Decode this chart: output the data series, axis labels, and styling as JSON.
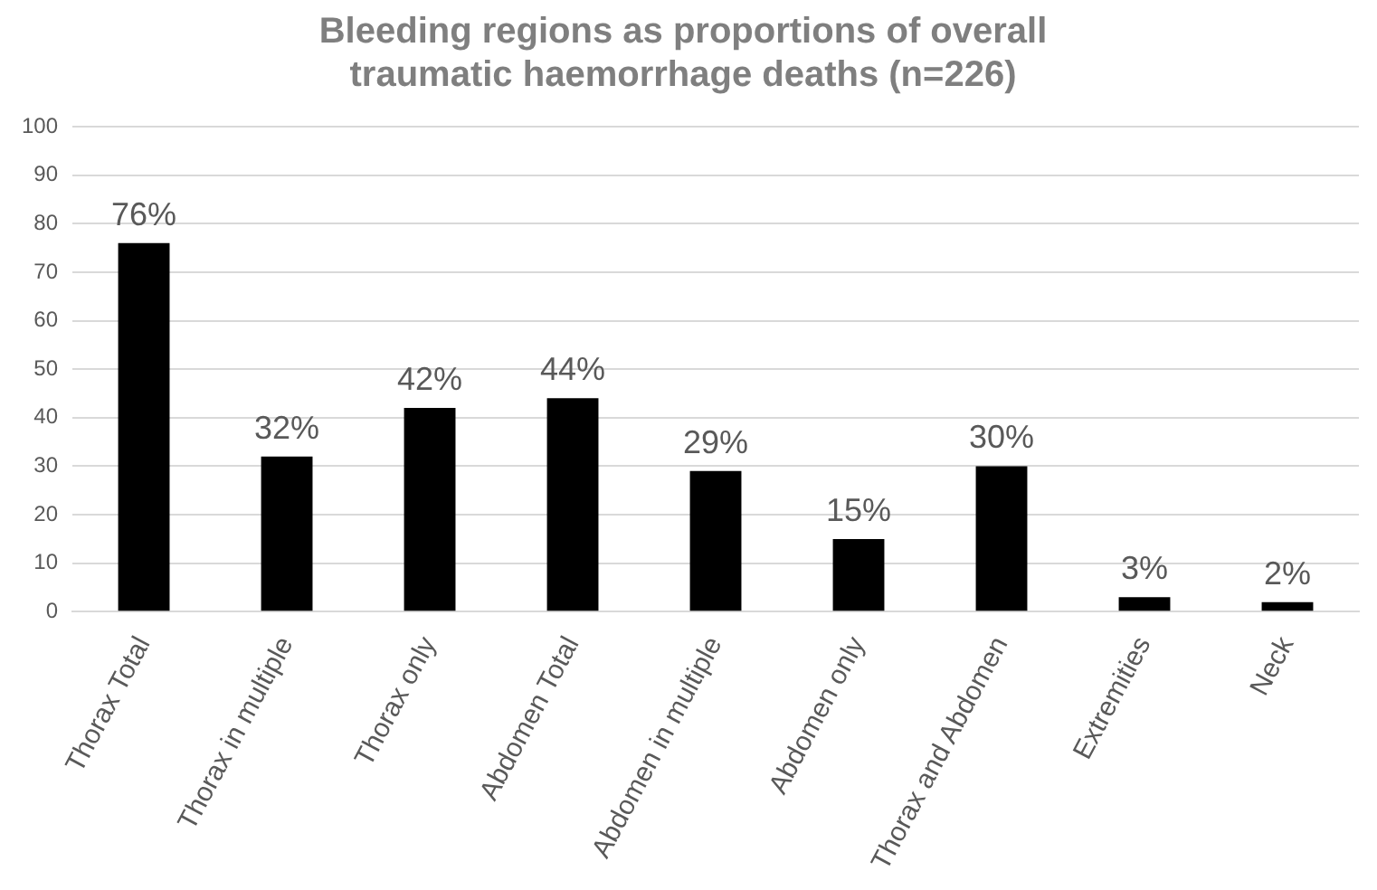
{
  "chart_data": {
    "type": "bar",
    "title": [
      "Bleeding regions as proportions of overall",
      "traumatic haemorrhage deaths (n=226)"
    ],
    "categories": [
      "Thorax Total",
      "Thorax in multiple",
      "Thorax only",
      "Abdomen Total",
      "Abdomen in multiple",
      "Abdomen only",
      "Thorax and Abdomen",
      "Extremities",
      "Neck"
    ],
    "values": [
      76,
      32,
      42,
      44,
      29,
      15,
      30,
      3,
      2
    ],
    "value_labels": [
      "76%",
      "32%",
      "42%",
      "44%",
      "29%",
      "15%",
      "30%",
      "3%",
      "2%"
    ],
    "color": "#000000",
    "ylim": [
      0,
      100
    ],
    "yticks": [
      0,
      10,
      20,
      30,
      40,
      50,
      60,
      70,
      80,
      90,
      100
    ],
    "grid": "y",
    "legend": false
  }
}
